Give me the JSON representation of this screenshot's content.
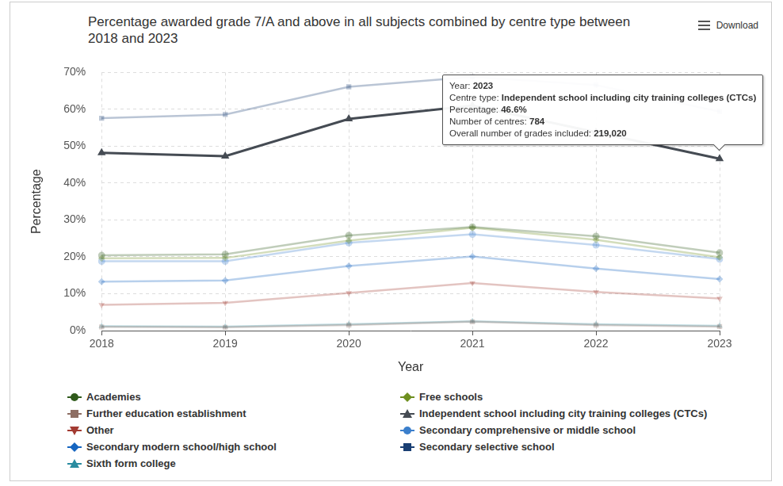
{
  "chart_data": {
    "type": "line",
    "title": "Percentage awarded grade 7/A and above in all subjects combined by centre type between 2018 and 2023",
    "x_label": "Year",
    "y_label": "Percentage",
    "categories": [
      "2018",
      "2019",
      "2020",
      "2021",
      "2022",
      "2023"
    ],
    "ylim": [
      0,
      70
    ],
    "yticks": [
      {
        "value": 0,
        "label": "0%"
      },
      {
        "value": 10,
        "label": "10%"
      },
      {
        "value": 20,
        "label": "20%"
      },
      {
        "value": 30,
        "label": "30%"
      },
      {
        "value": 40,
        "label": "40%"
      },
      {
        "value": 50,
        "label": "50%"
      },
      {
        "value": 60,
        "label": "60%"
      },
      {
        "value": 70,
        "label": "70%"
      }
    ],
    "grid": true,
    "legend": "bottom",
    "menu_label": "Download",
    "series": [
      {
        "name": "Academies",
        "color": "#2f5a1b",
        "marker": "circle",
        "values": [
          20.4,
          20.7,
          25.8,
          28.1,
          25.6,
          21.1
        ]
      },
      {
        "name": "Free schools",
        "color": "#6e8f1f",
        "marker": "diamond",
        "values": [
          19.6,
          19.7,
          24.4,
          27.9,
          24.6,
          19.9
        ]
      },
      {
        "name": "Further education establishment",
        "color": "#8d6e63",
        "marker": "square",
        "values": [
          1.0,
          0.9,
          1.5,
          2.4,
          1.5,
          1.1
        ]
      },
      {
        "name": "Independent school including city training colleges (CTCs)",
        "color": "#454b53",
        "marker": "triangle",
        "values": [
          48.2,
          47.3,
          57.4,
          61.0,
          53.8,
          46.6
        ]
      },
      {
        "name": "Other",
        "color": "#a33b32",
        "marker": "triangle-down",
        "values": [
          7.0,
          7.5,
          10.2,
          12.9,
          10.5,
          8.7
        ]
      },
      {
        "name": "Secondary comprehensive or middle school",
        "color": "#3b7fcc",
        "marker": "circle",
        "values": [
          18.8,
          18.8,
          23.8,
          26.1,
          23.2,
          19.4
        ]
      },
      {
        "name": "Secondary modern school/high school",
        "color": "#1565c0",
        "marker": "diamond",
        "values": [
          13.3,
          13.6,
          17.5,
          20.1,
          16.8,
          14.0
        ]
      },
      {
        "name": "Secondary selective school",
        "color": "#1a3f73",
        "marker": "square",
        "values": [
          57.6,
          58.6,
          66.1,
          68.8,
          66.6,
          59.4
        ]
      },
      {
        "name": "Sixth form college",
        "color": "#2a8ca0",
        "marker": "triangle",
        "values": [
          1.2,
          1.1,
          1.7,
          2.5,
          1.7,
          1.3
        ]
      }
    ],
    "annotations": [
      {
        "series": "Independent school including city training colleges (CTCs)",
        "category": "2023",
        "lines": [
          {
            "label": "Year:",
            "value": "2023"
          },
          {
            "label": "Centre type:",
            "value": "Independent school including city training colleges (CTCs)"
          },
          {
            "label": "Percentage:",
            "value": "46.6%"
          },
          {
            "label": "Number of centres:",
            "value": "784"
          },
          {
            "label": "Overall number of grades included:",
            "value": "219,020"
          }
        ]
      }
    ]
  }
}
